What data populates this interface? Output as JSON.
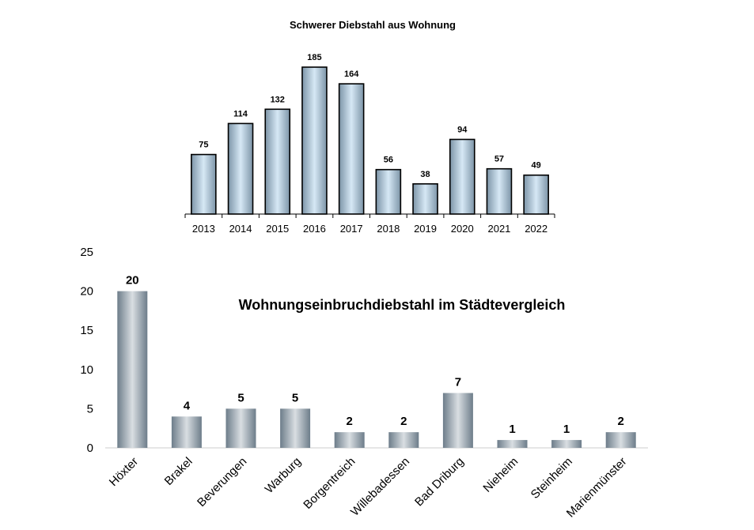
{
  "chart_data": [
    {
      "type": "bar",
      "title": "Schwerer Diebstahl aus Wohnung",
      "categories": [
        "2013",
        "2014",
        "2015",
        "2016",
        "2017",
        "2018",
        "2019",
        "2020",
        "2021",
        "2022"
      ],
      "values": [
        75,
        114,
        132,
        185,
        164,
        56,
        38,
        94,
        57,
        49
      ],
      "data_labels": true,
      "y_axis_visible": false,
      "ylim": [
        0,
        185
      ],
      "grid": false,
      "legend": "none",
      "colors": {
        "bar_light": "#d6e8f5",
        "bar_dark": "#7d95a8",
        "outline": "#000000"
      }
    },
    {
      "type": "bar",
      "title": "Wohnungseinbruchdiebstahl im Städtevergleich",
      "categories": [
        "Höxter",
        "Brakel",
        "Beverungen",
        "Warburg",
        "Borgentreich",
        "Willebadessen",
        "Bad Driburg",
        "Nieheim",
        "Steinheim",
        "Marienmünster"
      ],
      "values": [
        20,
        4,
        5,
        5,
        2,
        2,
        7,
        1,
        1,
        2
      ],
      "data_labels": true,
      "yticks": [
        "0",
        "5",
        "10",
        "15",
        "20",
        "25"
      ],
      "ylim": [
        0,
        25
      ],
      "grid": false,
      "legend": "none",
      "colors": {
        "bar_light": "#d9dee2",
        "bar_dark": "#6d7d8a",
        "axis": "#cccccc"
      }
    }
  ]
}
